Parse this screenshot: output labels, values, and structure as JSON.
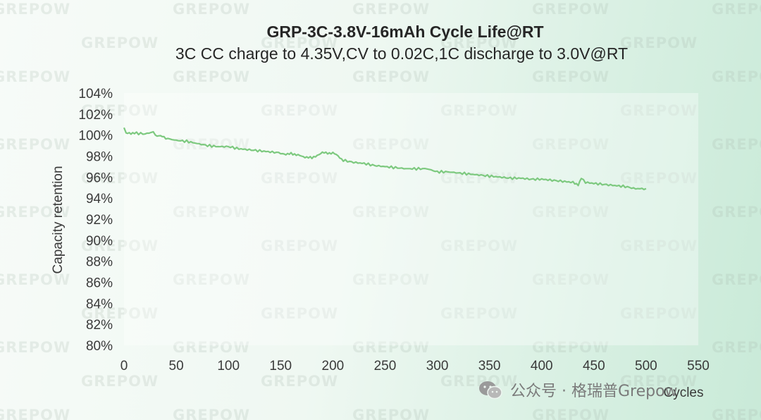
{
  "source": {
    "icon": "wechat-icon",
    "text": "公众号 · 格瑞普Grepow"
  },
  "chart_data": {
    "type": "line",
    "title": "GRP-3C-3.8V-16mAh Cycle Life@RT",
    "subtitle": "3C CC charge to 4.35V,CV to 0.02C,1C discharge to 3.0V@RT",
    "xlabel": "Cycles",
    "ylabel": "Capacity retention",
    "xlim": [
      0,
      550
    ],
    "ylim": [
      80,
      104
    ],
    "xticks": [
      0,
      50,
      100,
      150,
      200,
      250,
      300,
      350,
      400,
      450,
      500,
      550
    ],
    "xtick_labels": [
      "0",
      "50",
      "100",
      "150",
      "200",
      "250",
      "300",
      "350",
      "400",
      "450",
      "500",
      "550"
    ],
    "yticks": [
      80,
      82,
      84,
      86,
      88,
      90,
      92,
      94,
      96,
      98,
      100,
      102,
      104
    ],
    "ytick_labels": [
      "80%",
      "82%",
      "84%",
      "86%",
      "88%",
      "90%",
      "92%",
      "94%",
      "96%",
      "98%",
      "100%",
      "102%",
      "104%"
    ],
    "grid": false,
    "legend": "none",
    "series": [
      {
        "name": "Capacity retention",
        "color": "#7dc97f",
        "x": [
          0,
          2,
          5,
          10,
          20,
          28,
          30,
          35,
          40,
          50,
          60,
          70,
          80,
          90,
          100,
          110,
          120,
          130,
          140,
          150,
          155,
          160,
          165,
          170,
          175,
          180,
          185,
          190,
          195,
          200,
          205,
          210,
          220,
          230,
          240,
          250,
          260,
          270,
          280,
          290,
          300,
          310,
          320,
          330,
          340,
          350,
          360,
          370,
          380,
          390,
          400,
          410,
          420,
          430,
          435,
          438,
          442,
          450,
          460,
          470,
          480,
          490,
          500
        ],
        "values": [
          100.7,
          100.2,
          100.2,
          100.2,
          100.1,
          100.3,
          100.0,
          99.9,
          99.7,
          99.5,
          99.4,
          99.2,
          99.0,
          98.9,
          98.9,
          98.7,
          98.6,
          98.5,
          98.4,
          98.3,
          98.1,
          98.3,
          98.1,
          98.0,
          97.9,
          97.8,
          98.1,
          98.3,
          98.3,
          98.3,
          98.0,
          97.6,
          97.4,
          97.3,
          97.1,
          97.0,
          96.9,
          96.8,
          96.8,
          96.8,
          96.5,
          96.5,
          96.4,
          96.3,
          96.2,
          96.1,
          96.0,
          95.9,
          95.9,
          95.8,
          95.8,
          95.7,
          95.6,
          95.5,
          95.3,
          95.9,
          95.5,
          95.4,
          95.3,
          95.2,
          95.1,
          94.9,
          94.9
        ]
      }
    ]
  }
}
